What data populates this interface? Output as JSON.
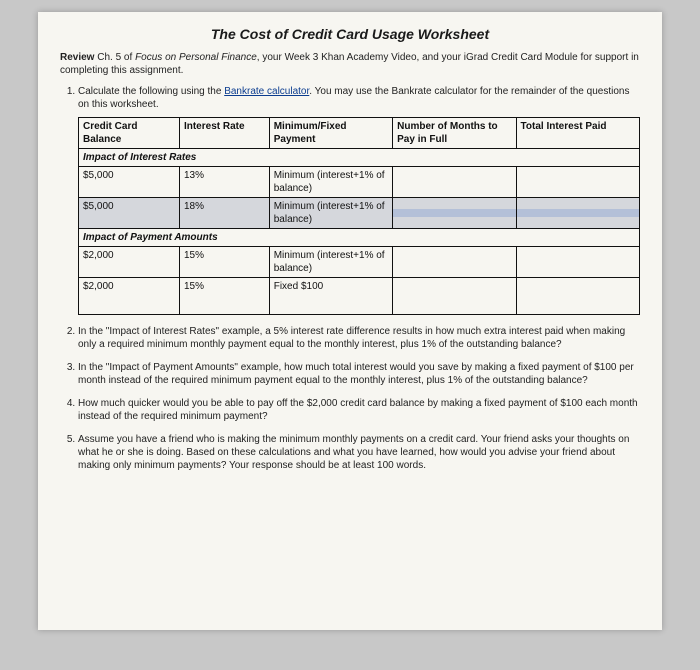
{
  "title": "The Cost of Credit Card Usage Worksheet",
  "intro": {
    "p1a": "Review ",
    "p1b": "Ch. 5 of ",
    "p1c": "Focus on Personal Finance",
    "p1d": ", your Week 3 Khan Academy Video, and your iGrad Credit Card Module for support in completing this assignment."
  },
  "q1": {
    "a": "Calculate the following using the ",
    "link": "Bankrate calculator",
    "b": ". You may use the Bankrate calculator for the remainder of the questions on this worksheet."
  },
  "table": {
    "headers": {
      "c0": "Credit Card Balance",
      "c1": "Interest Rate",
      "c2": "Minimum/Fixed Payment",
      "c3": "Number of Months to Pay in Full",
      "c4": "Total Interest Paid"
    },
    "section1": "Impact of Interest Rates",
    "r1": {
      "bal": "$5,000",
      "rate": "13%",
      "pay": "Minimum (interest+1% of balance)",
      "months": "",
      "total": ""
    },
    "r2": {
      "bal": "$5,000",
      "rate": "18%",
      "pay": "Minimum (interest+1% of balance)",
      "months": "",
      "total": ""
    },
    "section2": "Impact of Payment Amounts",
    "r3": {
      "bal": "$2,000",
      "rate": "15%",
      "pay": "Minimum (interest+1% of balance)",
      "months": "",
      "total": ""
    },
    "r4": {
      "bal": "$2,000",
      "rate": "15%",
      "pay": "Fixed $100",
      "months": "",
      "total": ""
    }
  },
  "q2": "In the \"Impact of Interest Rates\" example, a 5% interest rate difference results in how much extra interest paid when making only a required minimum monthly payment equal to the monthly interest, plus 1% of the outstanding balance?",
  "q3": "In the \"Impact of Payment Amounts\" example, how much total interest would you save by making a fixed payment of $100 per month instead of the required minimum payment equal to the monthly interest, plus 1% of the outstanding balance?",
  "q4": "How much quicker would you be able to pay off the $2,000 credit card balance by making a fixed payment of $100 each month instead of the required minimum payment?",
  "q5": "Assume you have a friend who is making the minimum monthly payments on a credit card. Your friend asks your thoughts on what he or she is doing. Based on these calculations and what you have learned, how would you advise your friend about making only minimum payments? Your response should be at least 100 words."
}
